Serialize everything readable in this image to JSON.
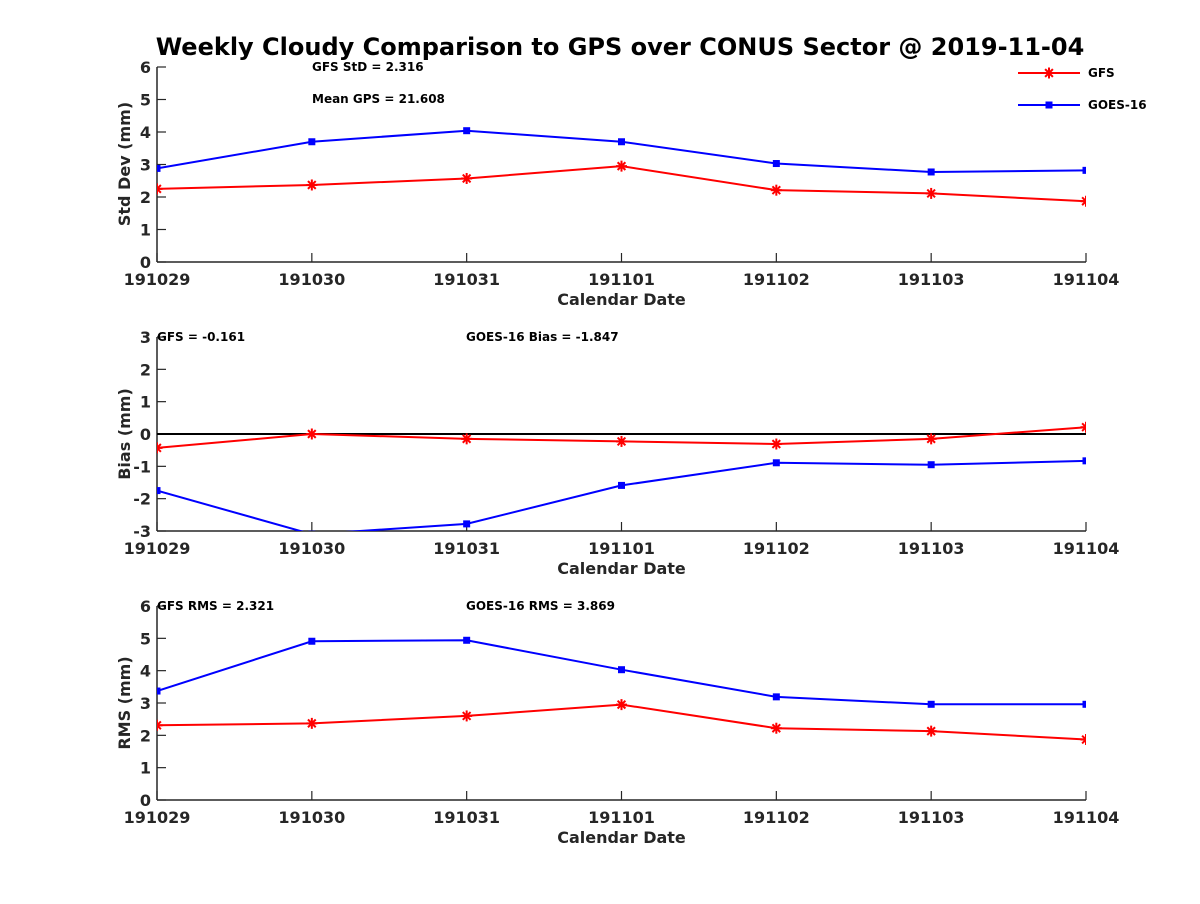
{
  "chart_data": {
    "title": "Weekly Cloudy Comparison to GPS over CONUS Sector @ 2019-11-04",
    "legend": {
      "placement": "top-right",
      "entries": [
        {
          "label": "GFS",
          "color": "#ff0000",
          "marker": "asterisk"
        },
        {
          "label": "GOES-16",
          "color": "#0000ff",
          "marker": "square"
        }
      ]
    },
    "categories": [
      "191029",
      "191030",
      "191031",
      "191101",
      "191102",
      "191103",
      "191104"
    ],
    "panels": [
      {
        "type": "line",
        "xlabel": "Calendar Date",
        "ylabel": "Std Dev (mm)",
        "ylim": [
          0,
          6
        ],
        "yticks": [
          0,
          1,
          2,
          3,
          4,
          5,
          6
        ],
        "zero_line": false,
        "annotations": [
          "GFS StD = 2.316",
          "Mean GPS = 21.608"
        ],
        "series": [
          {
            "name": "GFS",
            "color": "#ff0000",
            "marker": "asterisk",
            "values": [
              2.25,
              2.37,
              2.57,
              2.95,
              2.21,
              2.11,
              1.87
            ]
          },
          {
            "name": "GOES-16",
            "color": "#0000ff",
            "marker": "square",
            "values": [
              2.88,
              3.7,
              4.04,
              3.7,
              3.03,
              2.77,
              2.82
            ]
          }
        ]
      },
      {
        "type": "line",
        "xlabel": "Calendar Date",
        "ylabel": "Bias (mm)",
        "ylim": [
          -3,
          3
        ],
        "yticks": [
          -3,
          -2,
          -1,
          0,
          1,
          2,
          3
        ],
        "zero_line": true,
        "annotations": [
          "GFS = -0.161",
          "GOES-16 Bias  = -1.847"
        ],
        "series": [
          {
            "name": "GFS",
            "color": "#ff0000",
            "marker": "asterisk",
            "values": [
              -0.43,
              0.0,
              -0.15,
              -0.23,
              -0.31,
              -0.15,
              0.21
            ]
          },
          {
            "name": "GOES-16",
            "color": "#0000ff",
            "marker": "square",
            "values": [
              -1.75,
              -3.1,
              -2.78,
              -1.59,
              -0.89,
              -0.95,
              -0.83
            ]
          }
        ]
      },
      {
        "type": "line",
        "xlabel": "Calendar Date",
        "ylabel": "RMS (mm)",
        "ylim": [
          0,
          6
        ],
        "yticks": [
          0,
          1,
          2,
          3,
          4,
          5,
          6
        ],
        "zero_line": false,
        "annotations": [
          "GFS RMS = 2.321",
          "GOES-16 RMS = 3.869"
        ],
        "series": [
          {
            "name": "GFS",
            "color": "#ff0000",
            "marker": "asterisk",
            "values": [
              2.31,
              2.37,
              2.6,
              2.95,
              2.22,
              2.13,
              1.87
            ]
          },
          {
            "name": "GOES-16",
            "color": "#0000ff",
            "marker": "square",
            "values": [
              3.37,
              4.91,
              4.94,
              4.03,
              3.19,
              2.96,
              2.96
            ]
          }
        ]
      }
    ]
  }
}
